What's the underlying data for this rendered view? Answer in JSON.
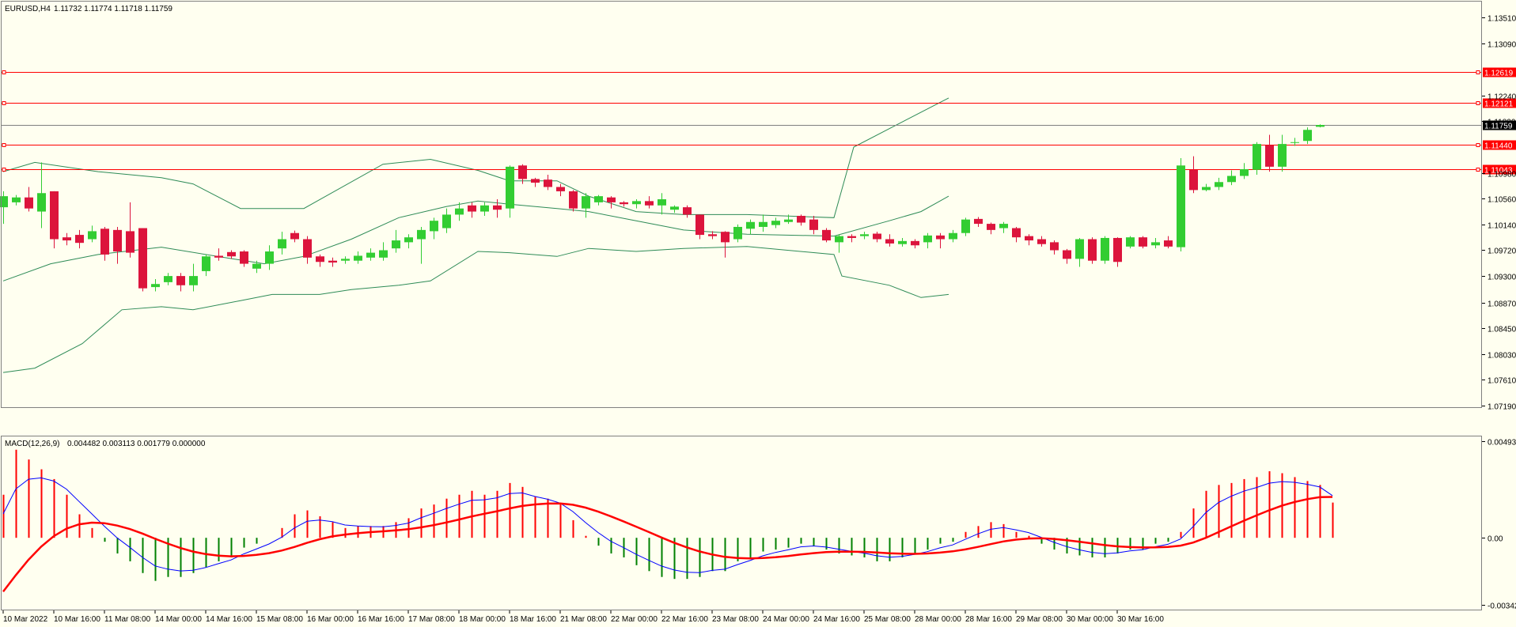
{
  "header": {
    "symbol_label": "EURUSD,H4",
    "ohlc_text": "1.11732 1.11774 1.11718 1.11759"
  },
  "macd_header": {
    "label": "MACD(12,26,9)",
    "values_text": "0.004482 0.003113 0.001779 0.000000"
  },
  "colors": {
    "background": "#fffff0",
    "bull_candle": "#32cd32",
    "bear_candle": "#dc143c",
    "bands": "#2e8b57",
    "level_lines": "#ff0000",
    "current_price_line": "#808080",
    "macd_main": "#0000ff",
    "macd_signal": "#ff0000",
    "hist_pos": "#ff0000",
    "hist_neg": "#008000"
  },
  "chart_data": [
    {
      "type": "candlestick",
      "name": "EURUSD,H4",
      "ylim": [
        1.0719,
        1.1355
      ],
      "y_ticks": [
        "1.13510",
        "1.13090",
        "1.12240",
        "1.11820",
        "1.10980",
        "1.10560",
        "1.10140",
        "1.09720",
        "1.09300",
        "1.08870",
        "1.08450",
        "1.08030",
        "1.07610",
        "1.07190"
      ],
      "x_ticks": [
        "10 Mar 2022",
        "10 Mar 16:00",
        "11 Mar 08:00",
        "14 Mar 00:00",
        "14 Mar 16:00",
        "15 Mar 08:00",
        "16 Mar 00:00",
        "16 Mar 16:00",
        "17 Mar 08:00",
        "18 Mar 00:00",
        "18 Mar 16:00",
        "21 Mar 08:00",
        "22 Mar 00:00",
        "22 Mar 16:00",
        "23 Mar 08:00",
        "24 Mar 00:00",
        "24 Mar 16:00",
        "25 Mar 08:00",
        "28 Mar 00:00",
        "28 Mar 16:00",
        "29 Mar 08:00",
        "30 Mar 00:00",
        "30 Mar 16:00"
      ],
      "candles": [
        [
          1.1042,
          1.106,
          1.1015,
          1.1068
        ],
        [
          1.105,
          1.1058,
          1.1045,
          1.1062
        ],
        [
          1.1058,
          1.104,
          1.1035,
          1.1075
        ],
        [
          1.1035,
          1.1065,
          1.1008,
          1.1115
        ],
        [
          1.1068,
          1.099,
          1.0975,
          1.1068
        ],
        [
          1.0993,
          1.0988,
          1.098,
          1.1
        ],
        [
          1.0997,
          1.0984,
          1.0975,
          1.1005
        ],
        [
          1.099,
          1.1003,
          1.0985,
          1.1012
        ],
        [
          1.1007,
          1.0965,
          1.0955,
          1.101
        ],
        [
          1.1005,
          1.097,
          1.095,
          1.101
        ],
        [
          1.1003,
          1.0968,
          1.096,
          1.105
        ],
        [
          1.1008,
          1.091,
          1.0905,
          1.1008
        ],
        [
          1.0912,
          1.0917,
          1.0905,
          1.0925
        ],
        [
          1.092,
          1.093,
          1.0915,
          1.0935
        ],
        [
          1.093,
          1.0915,
          1.0905,
          1.0935
        ],
        [
          1.0915,
          1.093,
          1.0905,
          1.095
        ],
        [
          1.0938,
          1.0962,
          1.093,
          1.0965
        ],
        [
          1.0963,
          1.096,
          1.0955,
          1.0975
        ],
        [
          1.0969,
          1.0962,
          1.0958,
          1.0972
        ],
        [
          1.097,
          1.095,
          1.0945,
          1.0972
        ],
        [
          1.0942,
          1.095,
          1.0935,
          1.0955
        ],
        [
          1.095,
          1.097,
          1.094,
          1.098
        ],
        [
          1.0975,
          1.099,
          1.0965,
          1.1002
        ],
        [
          1.1,
          1.099,
          1.0985,
          1.1004
        ],
        [
          1.099,
          1.096,
          1.095,
          1.0995
        ],
        [
          1.0962,
          1.0953,
          1.0945,
          1.0965
        ],
        [
          1.0955,
          1.0952,
          1.0945,
          1.096
        ],
        [
          1.0955,
          1.0958,
          1.095,
          1.0962
        ],
        [
          1.0955,
          1.0963,
          1.095,
          1.097
        ],
        [
          1.096,
          1.0968,
          1.0955,
          1.0975
        ],
        [
          1.096,
          1.0972,
          1.0955,
          1.0985
        ],
        [
          1.0975,
          1.0988,
          1.0968,
          1.1005
        ],
        [
          1.0985,
          1.0993,
          1.0975,
          1.0998
        ],
        [
          1.099,
          1.1005,
          1.095,
          1.101
        ],
        [
          1.1003,
          1.102,
          1.099,
          1.1025
        ],
        [
          1.1008,
          1.103,
          1.1,
          1.104
        ],
        [
          1.103,
          1.104,
          1.102,
          1.105
        ],
        [
          1.1045,
          1.1035,
          1.1025,
          1.105
        ],
        [
          1.1035,
          1.1045,
          1.1028,
          1.105
        ],
        [
          1.1045,
          1.1038,
          1.1025,
          1.1055
        ],
        [
          1.104,
          1.1108,
          1.1025,
          1.111
        ],
        [
          1.111,
          1.1088,
          1.108,
          1.1112
        ],
        [
          1.1088,
          1.1082,
          1.1075,
          1.109
        ],
        [
          1.1087,
          1.1075,
          1.107,
          1.1095
        ],
        [
          1.1075,
          1.1068,
          1.106,
          1.108
        ],
        [
          1.1068,
          1.104,
          1.1035,
          1.107
        ],
        [
          1.104,
          1.106,
          1.1025,
          1.1065
        ],
        [
          1.105,
          1.106,
          1.1045,
          1.1062
        ],
        [
          1.1058,
          1.105,
          1.104,
          1.106
        ],
        [
          1.105,
          1.1047,
          1.1043,
          1.1052
        ],
        [
          1.1047,
          1.1052,
          1.104,
          1.1055
        ],
        [
          1.1052,
          1.1045,
          1.104,
          1.106
        ],
        [
          1.1045,
          1.1055,
          1.103,
          1.1065
        ],
        [
          1.1038,
          1.1043,
          1.1033,
          1.1045
        ],
        [
          1.1042,
          1.103,
          1.1025,
          1.1045
        ],
        [
          1.103,
          1.0997,
          1.099,
          1.103
        ],
        [
          1.0998,
          1.0995,
          1.099,
          1.1003
        ],
        [
          1.1002,
          1.0985,
          1.096,
          1.1003
        ],
        [
          1.099,
          1.101,
          1.0985,
          1.1014
        ],
        [
          1.1007,
          1.1018,
          1.0998,
          1.1022
        ],
        [
          1.101,
          1.1018,
          1.1002,
          1.103
        ],
        [
          1.1013,
          1.102,
          1.1008,
          1.1025
        ],
        [
          1.1018,
          1.1022,
          1.1015,
          1.103
        ],
        [
          1.1028,
          1.1017,
          1.1012,
          1.103
        ],
        [
          1.1022,
          1.1005,
          1.0998,
          1.1028
        ],
        [
          1.1005,
          1.0988,
          1.0985,
          1.1008
        ],
        [
          1.0985,
          1.0995,
          1.0968,
          1.0998
        ],
        [
          1.0995,
          1.0992,
          1.0985,
          1.0998
        ],
        [
          1.0995,
          1.0998,
          1.099,
          1.1002
        ],
        [
          1.0999,
          1.099,
          1.0985,
          1.1002
        ],
        [
          1.099,
          1.0983,
          1.0978,
          1.0998
        ],
        [
          1.0982,
          1.0987,
          1.0978,
          1.0992
        ],
        [
          1.0987,
          1.098,
          1.0975,
          1.099
        ],
        [
          1.0985,
          1.0996,
          1.0975,
          1.1
        ],
        [
          1.0996,
          1.099,
          1.0975,
          1.1
        ],
        [
          1.099,
          1.1,
          1.0985,
          1.1005
        ],
        [
          1.1,
          1.1022,
          1.0995,
          1.1025
        ],
        [
          1.1023,
          1.1015,
          1.101,
          1.1026
        ],
        [
          1.1015,
          1.1005,
          1.0998,
          1.1017
        ],
        [
          1.1008,
          1.1015,
          1.1,
          1.1018
        ],
        [
          1.1008,
          1.0993,
          1.0985,
          1.101
        ],
        [
          1.0995,
          1.0988,
          1.098,
          1.0998
        ],
        [
          1.099,
          1.0982,
          1.0978,
          1.0995
        ],
        [
          1.0985,
          1.0972,
          1.0965,
          1.0988
        ],
        [
          1.0972,
          1.0958,
          1.095,
          1.0974
        ],
        [
          1.0958,
          1.099,
          1.0945,
          1.0992
        ],
        [
          1.099,
          1.0955,
          1.095,
          1.0993
        ],
        [
          1.0955,
          1.0992,
          1.095,
          1.0995
        ],
        [
          1.0992,
          1.0953,
          1.0945,
          1.0993
        ],
        [
          1.0978,
          1.0993,
          1.0975,
          1.0995
        ],
        [
          1.0993,
          1.0978,
          1.0975,
          1.0995
        ],
        [
          1.098,
          1.0985,
          1.0975,
          1.0992
        ],
        [
          1.0988,
          1.0978,
          1.0975,
          1.0995
        ],
        [
          1.0977,
          1.111,
          1.097,
          1.1122
        ],
        [
          1.1103,
          1.107,
          1.1065,
          1.1125
        ],
        [
          1.107,
          1.1075,
          1.1068,
          1.108
        ],
        [
          1.1075,
          1.1083,
          1.107,
          1.109
        ],
        [
          1.1083,
          1.1093,
          1.1078,
          1.1102
        ],
        [
          1.1093,
          1.1104,
          1.1088,
          1.1114
        ],
        [
          1.1103,
          1.1145,
          1.1095,
          1.1148
        ],
        [
          1.1143,
          1.1108,
          1.11,
          1.116
        ],
        [
          1.1108,
          1.1145,
          1.11,
          1.116
        ],
        [
          1.1148,
          1.1148,
          1.1142,
          1.1155
        ],
        [
          1.115,
          1.1168,
          1.1145,
          1.1172
        ],
        [
          1.1173,
          1.1176,
          1.1172,
          1.1177
        ]
      ],
      "bands": {
        "upper": [
          [
            0,
            1.11
          ],
          [
            40,
            1.1115
          ],
          [
            120,
            1.11
          ],
          [
            200,
            1.109
          ],
          [
            240,
            1.108
          ],
          [
            300,
            1.104
          ],
          [
            380,
            1.104
          ],
          [
            480,
            1.1112
          ],
          [
            540,
            1.112
          ],
          [
            600,
            1.1102
          ],
          [
            640,
            1.1085
          ],
          [
            700,
            1.1085
          ],
          [
            740,
            1.106
          ],
          [
            800,
            1.1035
          ],
          [
            860,
            1.103
          ],
          [
            940,
            1.103
          ],
          [
            1050,
            1.1025
          ],
          [
            1075,
            1.114
          ],
          [
            1120,
            1.117
          ],
          [
            1195,
            1.122
          ]
        ],
        "middle": [
          [
            0,
            1.0922
          ],
          [
            60,
            1.095
          ],
          [
            120,
            1.0965
          ],
          [
            200,
            1.0977
          ],
          [
            280,
            1.096
          ],
          [
            330,
            1.095
          ],
          [
            380,
            1.0962
          ],
          [
            440,
            1.099
          ],
          [
            500,
            1.1025
          ],
          [
            560,
            1.1043
          ],
          [
            600,
            1.1052
          ],
          [
            640,
            1.1047
          ],
          [
            700,
            1.104
          ],
          [
            740,
            1.1035
          ],
          [
            800,
            1.102
          ],
          [
            860,
            1.1005
          ],
          [
            940,
            1.0998
          ],
          [
            1050,
            1.0995
          ],
          [
            1120,
            1.102
          ],
          [
            1160,
            1.1035
          ],
          [
            1195,
            1.106
          ]
        ],
        "lower": [
          [
            0,
            1.0773
          ],
          [
            40,
            1.078
          ],
          [
            100,
            1.082
          ],
          [
            150,
            1.0875
          ],
          [
            200,
            1.088
          ],
          [
            240,
            1.0875
          ],
          [
            300,
            1.089
          ],
          [
            340,
            1.09
          ],
          [
            400,
            1.09
          ],
          [
            440,
            1.0908
          ],
          [
            500,
            1.0915
          ],
          [
            540,
            1.0922
          ],
          [
            600,
            1.097
          ],
          [
            640,
            1.0968
          ],
          [
            700,
            1.0962
          ],
          [
            740,
            1.0975
          ],
          [
            800,
            1.097
          ],
          [
            860,
            1.0975
          ],
          [
            940,
            1.0978
          ],
          [
            1050,
            1.0965
          ],
          [
            1060,
            1.093
          ],
          [
            1120,
            1.0915
          ],
          [
            1160,
            1.0895
          ],
          [
            1195,
            1.09
          ]
        ]
      },
      "levels": [
        {
          "price": 1.12619,
          "label": "1.12619"
        },
        {
          "price": 1.12121,
          "label": "1.12121"
        },
        {
          "price": 1.1144,
          "label": "1.11440"
        },
        {
          "price": 1.11043,
          "label": "1.11043"
        }
      ],
      "current_price": {
        "price": 1.11759,
        "label": "1.11759"
      }
    },
    {
      "type": "macd",
      "name": "MACD(12,26,9)",
      "ylim": [
        -0.003425,
        0.004935
      ],
      "y_ticks": [
        "0.004935",
        "0.00",
        "-0.003425"
      ],
      "histogram": [
        0.0022,
        0.0045,
        0.004,
        0.0035,
        0.003,
        0.0022,
        0.0012,
        0.0005,
        -0.0002,
        -0.0008,
        -0.0012,
        -0.0018,
        -0.0022,
        -0.002,
        -0.002,
        -0.0018,
        -0.0015,
        -0.0012,
        -0.001,
        -0.0005,
        -0.0003,
        0.0,
        0.0005,
        0.0012,
        0.0014,
        0.0011,
        0.0008,
        0.0005,
        0.0006,
        0.0006,
        0.0006,
        0.0008,
        0.001,
        0.0015,
        0.0017,
        0.002,
        0.0022,
        0.0024,
        0.0022,
        0.0024,
        0.0028,
        0.0026,
        0.0021,
        0.002,
        0.0017,
        0.0009,
        0.0001,
        -0.0004,
        -0.0008,
        -0.001,
        -0.0014,
        -0.0017,
        -0.002,
        -0.0021,
        -0.0021,
        -0.002,
        -0.0017,
        -0.0017,
        -0.0012,
        -0.001,
        -0.0007,
        -0.0006,
        -0.0005,
        -0.0003,
        -0.0004,
        -0.0006,
        -0.0008,
        -0.0009,
        -0.001,
        -0.0012,
        -0.0012,
        -0.001,
        -0.0008,
        -0.0006,
        -0.0003,
        -0.0002,
        0.0003,
        0.0006,
        0.0008,
        0.0007,
        0.0003,
        0.0001,
        -0.0003,
        -0.0006,
        -0.0008,
        -0.0009,
        -0.001,
        -0.001,
        -0.0008,
        -0.0006,
        -0.0006,
        -0.0003,
        -0.0002,
        0.0003,
        0.0015,
        0.0024,
        0.0027,
        0.0028,
        0.003,
        0.0031,
        0.0034,
        0.0033,
        0.0031,
        0.0029,
        0.0027,
        0.0018
      ]
    }
  ]
}
